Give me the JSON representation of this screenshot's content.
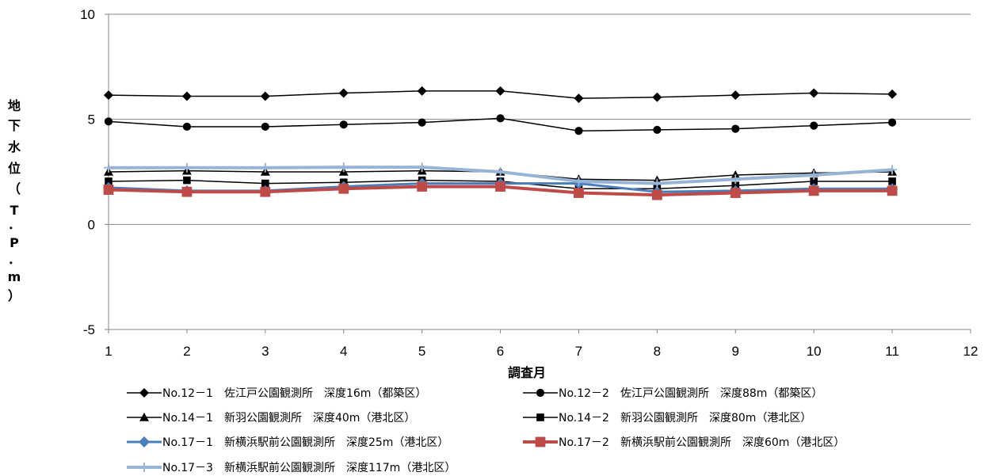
{
  "chart_data": {
    "type": "line",
    "title": "",
    "xlabel": "調査月",
    "ylabel": "地下水位（T.P.m）",
    "ylabel_chars": [
      "地",
      "下",
      "水",
      "位",
      "（",
      "T",
      "．",
      "P",
      "．",
      "m",
      "）"
    ],
    "xlim": [
      1,
      12
    ],
    "ylim": [
      -5,
      10
    ],
    "xticks": [
      "1",
      "2",
      "3",
      "4",
      "5",
      "6",
      "7",
      "8",
      "9",
      "10",
      "11",
      "12"
    ],
    "yticks": [
      "10",
      "5",
      "0",
      "-5"
    ],
    "grid": "horizontal",
    "legend_position": "bottom",
    "x": [
      1,
      2,
      3,
      4,
      5,
      6,
      7,
      8,
      9,
      10,
      11
    ],
    "series": [
      {
        "name": "No.12－1　佐江戸公園観測所　深度16m（都築区）",
        "color": "#000000",
        "marker": "diamond",
        "width": 1.5,
        "values": [
          6.15,
          6.1,
          6.1,
          6.25,
          6.35,
          6.35,
          6.0,
          6.05,
          6.15,
          6.25,
          6.2
        ]
      },
      {
        "name": "No.12－2　佐江戸公園観測所　深度88m（都築区）",
        "color": "#000000",
        "marker": "circle",
        "width": 1.5,
        "values": [
          4.9,
          4.65,
          4.65,
          4.75,
          4.85,
          5.05,
          4.45,
          4.5,
          4.55,
          4.7,
          4.85
        ]
      },
      {
        "name": "No.14－1　新羽公園観測所　深度40m（港北区）",
        "color": "#000000",
        "marker": "triangle",
        "width": 1.5,
        "values": [
          2.5,
          2.55,
          2.5,
          2.5,
          2.55,
          2.5,
          2.15,
          2.1,
          2.35,
          2.45,
          2.5
        ]
      },
      {
        "name": "No.14－2　新羽公園観測所　深度80m（港北区）",
        "color": "#000000",
        "marker": "square",
        "width": 1.5,
        "values": [
          2.05,
          2.1,
          1.95,
          2.0,
          2.1,
          2.05,
          1.7,
          1.7,
          1.85,
          2.05,
          2.05
        ]
      },
      {
        "name": "No.17－1　新横浜駅前公園観測所　深度25m（港北区）",
        "color": "#4a7ebb",
        "marker": "diamond",
        "width": 3,
        "values": [
          1.75,
          1.6,
          1.6,
          1.8,
          1.95,
          1.95,
          1.95,
          1.55,
          1.6,
          1.7,
          1.7
        ]
      },
      {
        "name": "No.17－2　新横浜駅前公園観測所　深度60m（港北区）",
        "color": "#be4b48",
        "marker": "square",
        "width": 4,
        "values": [
          1.65,
          1.55,
          1.55,
          1.7,
          1.8,
          1.8,
          1.5,
          1.4,
          1.5,
          1.6,
          1.6
        ]
      },
      {
        "name": "No.17－3　新横浜駅前公園観測所　深度117m（港北区）",
        "color": "#98b4d4",
        "marker": "plus",
        "width": 4,
        "values": [
          2.7,
          2.7,
          2.7,
          2.72,
          2.72,
          2.5,
          2.05,
          1.95,
          2.15,
          2.35,
          2.6
        ]
      }
    ]
  }
}
